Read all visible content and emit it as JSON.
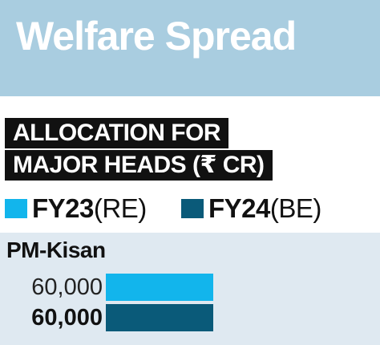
{
  "header": {
    "title": "Welfare Spread"
  },
  "subtitle": {
    "line1": "ALLOCATION FOR",
    "line2": "MAJOR HEADS  (₹ CR)"
  },
  "legend": [
    {
      "bold": "FY23",
      "rest": "(RE)",
      "color": "#12b5ec"
    },
    {
      "bold": "FY24",
      "rest": "(BE)",
      "color": "#0a5a79"
    }
  ],
  "chart_data": {
    "type": "bar",
    "orientation": "horizontal",
    "title": "Welfare Spread",
    "subtitle": "ALLOCATION FOR MAJOR HEADS (₹ CR)",
    "categories": [
      "PM-Kisan"
    ],
    "series": [
      {
        "name": "FY23(RE)",
        "values": [
          60000
        ],
        "labels": [
          "60,000"
        ],
        "color": "#12b5ec"
      },
      {
        "name": "FY24(BE)",
        "values": [
          60000
        ],
        "labels": [
          "60,000"
        ],
        "color": "#0a5a79"
      }
    ],
    "xlim": [
      0,
      60000
    ]
  }
}
